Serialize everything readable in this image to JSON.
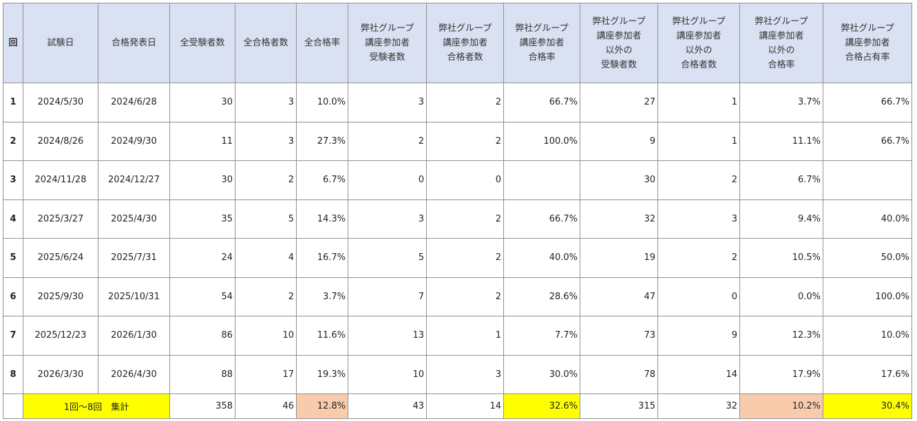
{
  "headers": [
    [
      "回"
    ],
    [
      "試験日"
    ],
    [
      "合格発表日"
    ],
    [
      "全受験者数"
    ],
    [
      "全合格者数"
    ],
    [
      "全合格率"
    ],
    [
      "弊社グループ",
      "講座参加者",
      "受験者数"
    ],
    [
      "弊社グループ",
      "講座参加者",
      "合格者数"
    ],
    [
      "弊社グループ",
      "講座参加者",
      "合格率"
    ],
    [
      "弊社グループ",
      "講座参加者",
      "以外の",
      "受験者数"
    ],
    [
      "弊社グループ",
      "講座参加者",
      "以外の",
      "合格者数"
    ],
    [
      "弊社グループ",
      "講座参加者",
      "以外の",
      "合格率"
    ],
    [
      "弊社グループ",
      "講座参加者",
      "合格占有率"
    ]
  ],
  "rows": [
    [
      "1",
      "2024/5/30",
      "2024/6/28",
      "30",
      "3",
      "10.0%",
      "3",
      "2",
      "66.7%",
      "27",
      "1",
      "3.7%",
      "66.7%"
    ],
    [
      "2",
      "2024/8/26",
      "2024/9/30",
      "11",
      "3",
      "27.3%",
      "2",
      "2",
      "100.0%",
      "9",
      "1",
      "11.1%",
      "66.7%"
    ],
    [
      "3",
      "2024/11/28",
      "2024/12/27",
      "30",
      "2",
      "6.7%",
      "0",
      "0",
      "",
      "30",
      "2",
      "6.7%",
      ""
    ],
    [
      "4",
      "2025/3/27",
      "2025/4/30",
      "35",
      "5",
      "14.3%",
      "3",
      "2",
      "66.7%",
      "32",
      "3",
      "9.4%",
      "40.0%"
    ],
    [
      "5",
      "2025/6/24",
      "2025/7/31",
      "24",
      "4",
      "16.7%",
      "5",
      "2",
      "40.0%",
      "19",
      "2",
      "10.5%",
      "50.0%"
    ],
    [
      "6",
      "2025/9/30",
      "2025/10/31",
      "54",
      "2",
      "3.7%",
      "7",
      "2",
      "28.6%",
      "47",
      "0",
      "0.0%",
      "100.0%"
    ],
    [
      "7",
      "2025/12/23",
      "2026/1/30",
      "86",
      "10",
      "11.6%",
      "13",
      "1",
      "7.7%",
      "73",
      "9",
      "12.3%",
      "10.0%"
    ],
    [
      "8",
      "2026/3/30",
      "2026/4/30",
      "88",
      "17",
      "19.3%",
      "10",
      "3",
      "30.0%",
      "78",
      "14",
      "17.9%",
      "17.6%"
    ]
  ],
  "total": {
    "label": "1回～8回　集計",
    "values": [
      "358",
      "46",
      "12.8%",
      "43",
      "14",
      "32.6%",
      "315",
      "32",
      "10.2%",
      "30.4%"
    ]
  },
  "colors": {
    "header_bg": "#d9e1f2",
    "yellow": "#ffff00",
    "orange": "#f8cbad",
    "grid": "#8f8f8f"
  }
}
